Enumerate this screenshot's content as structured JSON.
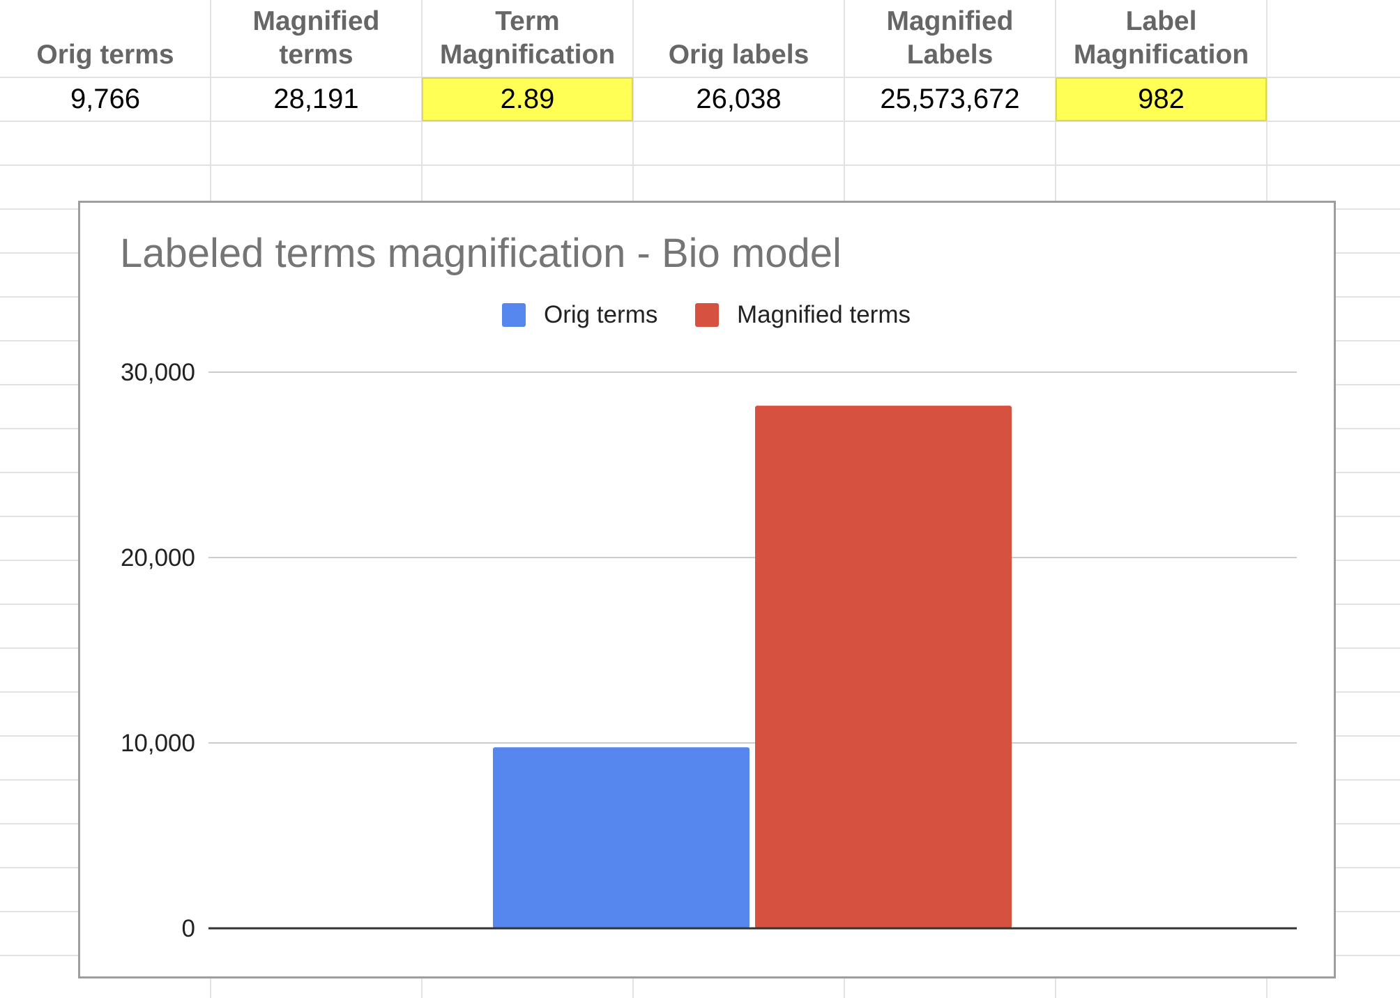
{
  "table": {
    "headers": [
      "Orig terms",
      "Magnified terms",
      "Term Magnification",
      "Orig labels",
      "Magnified Labels",
      "Label Magnification"
    ],
    "row": [
      "9,766",
      "28,191",
      "2.89",
      "26,038",
      "25,573,672",
      "982"
    ],
    "highlighted_columns": [
      2,
      5
    ],
    "highlight_color": "#ffff55"
  },
  "chart_data": {
    "type": "bar",
    "title": "Labeled terms magnification - Bio model",
    "categories": [
      ""
    ],
    "series": [
      {
        "name": "Orig terms",
        "values": [
          9766
        ],
        "color": "#5687ee"
      },
      {
        "name": "Magnified terms",
        "values": [
          28191
        ],
        "color": "#d65140"
      }
    ],
    "ylim": [
      0,
      30000
    ],
    "yticks": [
      "0",
      "10,000",
      "20,000",
      "30,000"
    ],
    "ytick_values": [
      0,
      10000,
      20000,
      30000
    ],
    "grid": true,
    "legend": "top"
  }
}
